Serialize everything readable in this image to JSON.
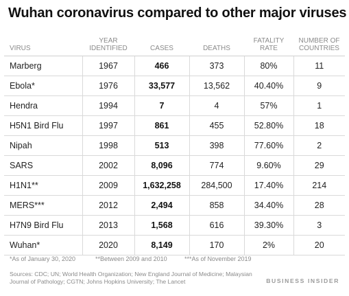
{
  "title": "Wuhan coronavirus compared to other major viruses",
  "columns": {
    "virus": "VIRUS",
    "year_line1": "YEAR",
    "year_line2": "IDENTIFIED",
    "cases": "CASES",
    "deaths": "DEATHS",
    "fatality_line1": "FATALITY",
    "fatality_line2": "RATE",
    "countries_line1": "NUMBER OF",
    "countries_line2": "COUNTRIES"
  },
  "rows": [
    {
      "virus": "Marberg",
      "year": "1967",
      "cases": "466",
      "deaths": "373",
      "fatality": "80%",
      "countries": "11"
    },
    {
      "virus": "Ebola*",
      "year": "1976",
      "cases": "33,577",
      "deaths": "13,562",
      "fatality": "40.40%",
      "countries": "9"
    },
    {
      "virus": "Hendra",
      "year": "1994",
      "cases": "7",
      "deaths": "4",
      "fatality": "57%",
      "countries": "1"
    },
    {
      "virus": "H5N1 Bird Flu",
      "year": "1997",
      "cases": "861",
      "deaths": "455",
      "fatality": "52.80%",
      "countries": "18"
    },
    {
      "virus": "Nipah",
      "year": "1998",
      "cases": "513",
      "deaths": "398",
      "fatality": "77.60%",
      "countries": "2"
    },
    {
      "virus": "SARS",
      "year": "2002",
      "cases": "8,096",
      "deaths": "774",
      "fatality": "9.60%",
      "countries": "29"
    },
    {
      "virus": "H1N1**",
      "year": "2009",
      "cases": "1,632,258",
      "deaths": "284,500",
      "fatality": "17.40%",
      "countries": "214"
    },
    {
      "virus": "MERS***",
      "year": "2012",
      "cases": "2,494",
      "deaths": "858",
      "fatality": "34.40%",
      "countries": "28"
    },
    {
      "virus": "H7N9 Bird Flu",
      "year": "2013",
      "cases": "1,568",
      "deaths": "616",
      "fatality": "39.30%",
      "countries": "3"
    },
    {
      "virus": "Wuhan*",
      "year": "2020",
      "cases": "8,149",
      "deaths": "170",
      "fatality": "2%",
      "countries": "20"
    }
  ],
  "footnotes": {
    "fn1": "*As of January 30, 2020",
    "fn2": "**Between 2009 and 2010",
    "fn3": "***As of November 2019"
  },
  "sources": "Sources: CDC; UN; World Health Organization; New England Journal of Medicine; Malaysian Journal of Pathology; CGTN; Johns Hopkins University; The Lancet",
  "brand": "BUSINESS INSIDER"
}
